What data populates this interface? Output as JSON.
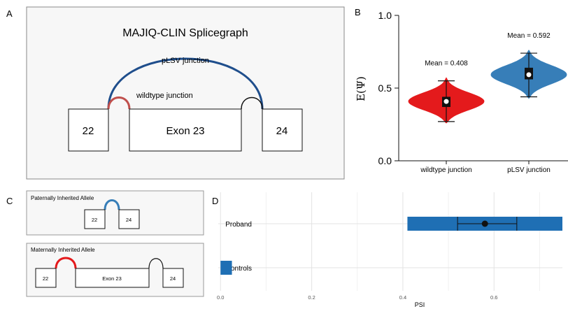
{
  "panels": {
    "a": "A",
    "b": "B",
    "c": "C",
    "d": "D"
  },
  "splicegraph": {
    "title": "MAJIQ-CLIN Splicegraph",
    "plsv_label": "pLSV junction",
    "wildtype_label": "wildtype junction",
    "exons": [
      "22",
      "Exon 23",
      "24"
    ]
  },
  "alleles": {
    "paternal": {
      "title": "Paternally Inherited Allele",
      "exons": [
        "22",
        "24"
      ]
    },
    "maternal": {
      "title": "Maternally Inherited Allele",
      "exons": [
        "22",
        "Exon 23",
        "24"
      ]
    }
  },
  "colors": {
    "red": "#e41a1c",
    "red_junction": "#c0504d",
    "blue": "#377eb8",
    "navy": "#1f4e8c",
    "bar_blue": "#1f6fb4",
    "panel_bg": "#f7f7f7"
  },
  "chart_data": [
    {
      "type": "violin",
      "ylabel": "E(Ψ)",
      "ylim": [
        0,
        1
      ],
      "yticks": [
        "0.0",
        "0.5",
        "1.0"
      ],
      "categories": [
        "wildtype junction",
        "pLSV junction"
      ],
      "series": [
        {
          "category": "wildtype junction",
          "mean": 0.408,
          "mean_label": "Mean = 0.408",
          "min": 0.26,
          "max": 0.57,
          "q1": 0.37,
          "q3": 0.44,
          "median": 0.408,
          "whisker_low": 0.27,
          "whisker_high": 0.55,
          "color": "#e41a1c"
        },
        {
          "category": "pLSV junction",
          "mean": 0.592,
          "mean_label": "Mean = 0.592",
          "min": 0.43,
          "max": 0.76,
          "q1": 0.56,
          "q3": 0.64,
          "median": 0.592,
          "whisker_low": 0.44,
          "whisker_high": 0.74,
          "color": "#377eb8"
        }
      ]
    },
    {
      "type": "bar",
      "orientation": "horizontal",
      "xlabel": "PSI",
      "xticks": [
        "0.0",
        "0.2",
        "0.4",
        "0.6"
      ],
      "xlim": [
        -0.005,
        0.75
      ],
      "categories": [
        "Proband",
        "Controls"
      ],
      "bars": [
        {
          "category": "Proband",
          "start": 0.41,
          "end": 0.75,
          "point": 0.58,
          "err_low": 0.52,
          "err_high": 0.65
        },
        {
          "category": "Controls",
          "start": 0.0,
          "end": 0.025
        }
      ]
    }
  ]
}
